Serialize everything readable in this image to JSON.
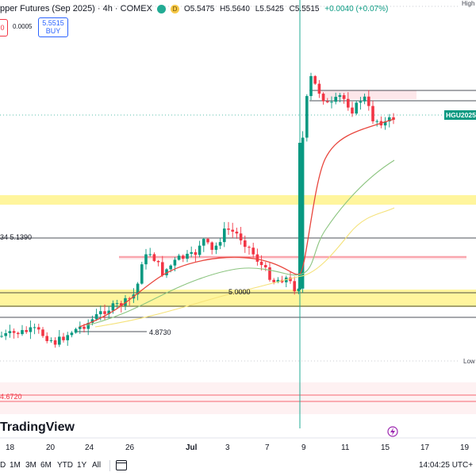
{
  "header": {
    "title_text": "pper Futures (Sep 2025) · 4h · COMEX",
    "open": "O5.5475",
    "high": "H5.5640",
    "low": "L5.5425",
    "close": "C5.5515",
    "change": "+0.0040 (+0.07%)",
    "badge_d": "D"
  },
  "trade_panel": {
    "sell_partial": "0",
    "spread": "0.0005",
    "buy_price": "5.5515",
    "buy_label": "BUY"
  },
  "labels": {
    "ticker_tag": "HGU2025",
    "high_tag": "High",
    "low_tag": "Low",
    "level_5139": "34 5.1390",
    "level_5000": "5.0000",
    "level_4873": "4.8730",
    "level_4672": "4.6720"
  },
  "chart_data": {
    "type": "candlestick",
    "title": "pper Futures (Sep 2025) · 4h · COMEX",
    "x_tick_labels": [
      "18",
      "20",
      "24",
      "26",
      "Jul",
      "3",
      "7",
      "9",
      "11",
      "15",
      "17",
      "19"
    ],
    "y_range_approx": [
      4.62,
      5.76
    ],
    "current_price_label": "HGU2025",
    "horizontal_levels": [
      {
        "label": "34 5.1390",
        "value": 5.139
      },
      {
        "label": "5.0000",
        "value": 5.0
      },
      {
        "label": "4.8730",
        "value": 4.873
      },
      {
        "label": "4.6720",
        "value": 4.672
      }
    ],
    "zones": [
      {
        "color": "yellow",
        "from": 5.33,
        "to": 5.35
      },
      {
        "color": "yellow",
        "from": 4.93,
        "to": 4.99
      },
      {
        "color": "red",
        "from": 4.665,
        "to": 4.68
      },
      {
        "color": "red",
        "from": 5.56,
        "to": 5.57
      },
      {
        "color": "red",
        "from": 5.055,
        "to": 5.065
      }
    ],
    "colors": {
      "up": "#089981",
      "down": "#f23645",
      "ma_fast": "#e8453c",
      "ma_mid": "#8bc47f",
      "ma_slow": "#f5e27a",
      "zone_yellow": "#fff59d",
      "zone_red": "#fde7ea"
    }
  },
  "bottom_bar": {
    "timeframes": [
      "D",
      "1M",
      "3M",
      "6M",
      "YTD",
      "1Y",
      "All"
    ],
    "clock": "14:04:25 UTC+"
  },
  "logo_text": "TradingView"
}
